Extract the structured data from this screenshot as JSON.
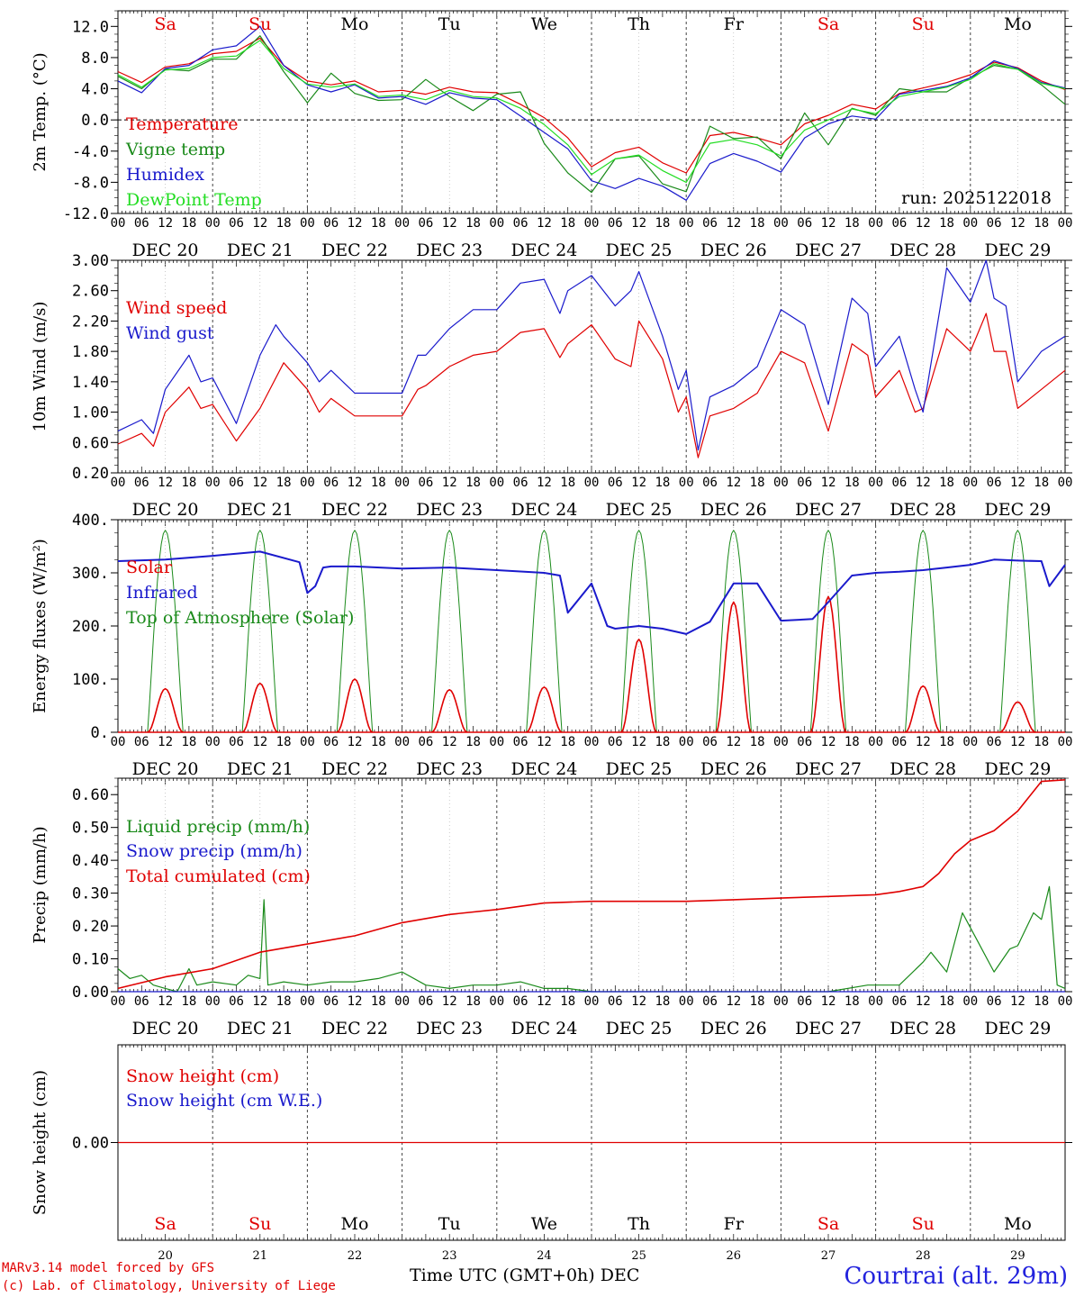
{
  "app": {
    "model_note": "MARv3.14 model forced by GFS",
    "lab_note": "(c) Lab. of Climatology, University of Liege",
    "x_title": "Time UTC (GMT+0h) DEC",
    "location": "Courtrai (alt. 29m)",
    "run_label": "run: 2025122018"
  },
  "days": {
    "weekday": [
      "Sa",
      "Su",
      "Mo",
      "Tu",
      "We",
      "Th",
      "Fr",
      "Sa",
      "Su",
      "Mo"
    ],
    "weekend": [
      true,
      true,
      false,
      false,
      false,
      false,
      false,
      true,
      true,
      false
    ],
    "dates": [
      "DEC 20",
      "DEC 21",
      "DEC 22",
      "DEC 23",
      "DEC 24",
      "DEC 25",
      "DEC 26",
      "DEC 27",
      "DEC 28",
      "DEC 29"
    ],
    "daynums": [
      "20",
      "21",
      "22",
      "23",
      "24",
      "25",
      "26",
      "27",
      "28",
      "29"
    ],
    "hours": [
      "00",
      "06",
      "12",
      "18"
    ],
    "end_hour": "00"
  },
  "chart_data": [
    {
      "id": "temp",
      "type": "line",
      "ylabel": "2m Temp. (°C)",
      "ylim": [
        -12,
        14
      ],
      "yticks": [
        "12.0",
        "8.0",
        "4.0",
        "0.0",
        "-4.0",
        "-8.0",
        "-12.0"
      ],
      "ytick_values": [
        12,
        8,
        4,
        0,
        -4,
        -8,
        -12
      ],
      "zero_line": true,
      "x_unit": "hours since DEC 20 00 UTC",
      "series": [
        {
          "name": "Temperature",
          "color": "#e00000",
          "x": [
            0,
            6,
            12,
            18,
            24,
            30,
            36,
            42,
            48,
            54,
            60,
            66,
            72,
            78,
            84,
            90,
            96,
            102,
            108,
            114,
            120,
            126,
            132,
            138,
            144,
            150,
            156,
            162,
            168,
            174,
            180,
            186,
            192,
            198,
            204,
            210,
            216,
            222,
            228,
            234,
            240
          ],
          "y": [
            6.2,
            4.8,
            6.8,
            7.2,
            8.5,
            8.8,
            10.5,
            7.0,
            5.0,
            4.5,
            5.0,
            3.6,
            3.8,
            3.3,
            4.2,
            3.6,
            3.5,
            2.0,
            0.3,
            -2.3,
            -6.0,
            -4.2,
            -3.5,
            -5.5,
            -6.8,
            -2.0,
            -1.6,
            -2.3,
            -3.2,
            -0.5,
            0.6,
            2.0,
            1.4,
            3.4,
            4.1,
            4.8,
            5.8,
            7.4,
            6.7,
            5.0,
            3.9
          ]
        },
        {
          "name": "Vigne temp",
          "color": "#1a8a1a",
          "x": [
            0,
            6,
            12,
            18,
            24,
            30,
            36,
            42,
            48,
            54,
            60,
            66,
            72,
            78,
            84,
            90,
            96,
            102,
            108,
            114,
            120,
            126,
            132,
            138,
            144,
            150,
            156,
            162,
            168,
            174,
            180,
            186,
            192,
            198,
            204,
            210,
            216,
            222,
            228,
            234,
            240
          ],
          "y": [
            5.6,
            4.0,
            6.5,
            6.3,
            7.8,
            7.8,
            10.8,
            6.2,
            2.2,
            6.0,
            3.4,
            2.5,
            2.6,
            5.2,
            3.0,
            1.2,
            3.3,
            3.6,
            -3.0,
            -6.8,
            -9.3,
            -5.0,
            -4.6,
            -8.2,
            -9.2,
            -0.8,
            -2.4,
            -2.2,
            -5.0,
            0.9,
            -3.2,
            1.5,
            0.6,
            4.0,
            3.6,
            3.6,
            5.4,
            7.0,
            6.5,
            4.5,
            2.0
          ]
        },
        {
          "name": "Humidex",
          "color": "#1a1acc",
          "x": [
            0,
            6,
            12,
            18,
            24,
            30,
            36,
            42,
            48,
            54,
            60,
            66,
            72,
            78,
            84,
            90,
            96,
            102,
            108,
            114,
            120,
            126,
            132,
            138,
            144,
            150,
            156,
            162,
            168,
            174,
            180,
            186,
            192,
            198,
            204,
            210,
            216,
            222,
            228,
            234,
            240
          ],
          "y": [
            5.0,
            3.5,
            6.6,
            7.0,
            9.0,
            9.5,
            12.0,
            7.0,
            4.5,
            3.6,
            4.5,
            2.8,
            3.0,
            2.0,
            3.5,
            2.8,
            2.6,
            0.5,
            -1.6,
            -3.7,
            -7.8,
            -8.8,
            -7.5,
            -8.5,
            -10.3,
            -5.6,
            -4.3,
            -5.3,
            -6.7,
            -2.3,
            -0.5,
            0.5,
            0.1,
            3.3,
            3.8,
            4.3,
            5.4,
            7.6,
            6.6,
            4.8,
            4.1
          ]
        },
        {
          "name": "DewPoint Temp",
          "color": "#22dd22",
          "x": [
            0,
            6,
            12,
            18,
            24,
            30,
            36,
            42,
            48,
            54,
            60,
            66,
            72,
            78,
            84,
            90,
            96,
            102,
            108,
            114,
            120,
            126,
            132,
            138,
            144,
            150,
            156,
            162,
            168,
            174,
            180,
            186,
            192,
            198,
            204,
            210,
            216,
            222,
            228,
            234,
            240
          ],
          "y": [
            5.8,
            4.2,
            6.4,
            6.6,
            8.0,
            8.2,
            10.2,
            6.6,
            4.6,
            4.2,
            4.6,
            3.0,
            3.2,
            2.6,
            3.8,
            3.0,
            2.8,
            1.5,
            -0.6,
            -3.2,
            -7.0,
            -5.0,
            -4.5,
            -6.5,
            -8.0,
            -3.0,
            -2.5,
            -3.2,
            -4.6,
            -1.3,
            0.0,
            1.4,
            0.8,
            3.0,
            3.6,
            4.2,
            5.2,
            7.2,
            6.5,
            4.7,
            4.0
          ]
        }
      ]
    },
    {
      "id": "wind",
      "type": "line",
      "ylabel": "10m Wind (m/s)",
      "ylim": [
        0.2,
        3.0
      ],
      "yticks": [
        "3.00",
        "2.60",
        "2.20",
        "1.80",
        "1.40",
        "1.00",
        "0.60",
        "0.20"
      ],
      "ytick_values": [
        3.0,
        2.6,
        2.2,
        1.8,
        1.4,
        1.0,
        0.6,
        0.2
      ],
      "x_unit": "hours since DEC 20 00 UTC",
      "series": [
        {
          "name": "Wind speed",
          "color": "#e00000",
          "x": [
            0,
            6,
            9,
            12,
            18,
            21,
            24,
            30,
            36,
            42,
            48,
            51,
            54,
            60,
            66,
            72,
            76,
            78,
            84,
            90,
            96,
            102,
            108,
            112,
            114,
            120,
            126,
            130,
            132,
            138,
            142,
            144,
            147,
            150,
            156,
            162,
            168,
            174,
            180,
            186,
            190,
            192,
            198,
            202,
            204,
            210,
            216,
            220,
            222,
            225,
            228,
            234,
            240
          ],
          "y": [
            0.58,
            0.72,
            0.55,
            1.0,
            1.33,
            1.05,
            1.1,
            0.62,
            1.05,
            1.65,
            1.3,
            1.0,
            1.18,
            0.95,
            0.95,
            0.95,
            1.3,
            1.35,
            1.6,
            1.75,
            1.8,
            2.05,
            2.1,
            1.72,
            1.9,
            2.15,
            1.7,
            1.6,
            2.2,
            1.7,
            1.0,
            1.2,
            0.4,
            0.95,
            1.05,
            1.25,
            1.8,
            1.65,
            0.75,
            1.9,
            1.75,
            1.2,
            1.55,
            1.0,
            1.05,
            2.1,
            1.8,
            2.3,
            1.8,
            1.8,
            1.05,
            1.3,
            1.55
          ]
        },
        {
          "name": "Wind gust",
          "color": "#1a1acc",
          "x": [
            0,
            6,
            9,
            12,
            18,
            21,
            24,
            30,
            36,
            40,
            42,
            48,
            51,
            54,
            60,
            66,
            72,
            76,
            78,
            84,
            90,
            96,
            102,
            108,
            112,
            114,
            120,
            126,
            130,
            132,
            138,
            142,
            144,
            147,
            150,
            156,
            162,
            168,
            174,
            180,
            186,
            190,
            192,
            198,
            202,
            204,
            210,
            216,
            220,
            222,
            225,
            228,
            234,
            240
          ],
          "y": [
            0.75,
            0.9,
            0.72,
            1.3,
            1.75,
            1.4,
            1.45,
            0.85,
            1.75,
            2.15,
            2.0,
            1.65,
            1.4,
            1.55,
            1.25,
            1.25,
            1.25,
            1.75,
            1.75,
            2.1,
            2.35,
            2.35,
            2.7,
            2.75,
            2.3,
            2.6,
            2.8,
            2.4,
            2.6,
            2.85,
            2.0,
            1.3,
            1.55,
            0.5,
            1.2,
            1.35,
            1.6,
            2.35,
            2.15,
            1.1,
            2.5,
            2.3,
            1.6,
            2.0,
            1.3,
            1.0,
            2.9,
            2.45,
            3.0,
            2.5,
            2.4,
            1.4,
            1.8,
            2.0
          ]
        }
      ]
    },
    {
      "id": "energy",
      "type": "line",
      "ylabel": "Energy fluxes (W/m²)",
      "ylim": [
        0,
        400
      ],
      "yticks": [
        "400.",
        "300.",
        "200.",
        "100.",
        "0."
      ],
      "ytick_values": [
        400,
        300,
        200,
        100,
        0
      ],
      "x_unit": "hours since DEC 20 00 UTC",
      "solar_daily_peak": [
        82,
        92,
        100,
        80,
        85,
        175,
        245,
        255,
        87,
        57
      ],
      "toa_daily_peak": 380,
      "daylight_hours": [
        7.5,
        16.5
      ],
      "series": [
        {
          "name": "Solar",
          "color": "#e00000"
        },
        {
          "name": "Infrared",
          "color": "#1a1acc",
          "x": [
            0,
            12,
            24,
            36,
            46,
            48,
            50,
            52,
            54,
            60,
            72,
            84,
            96,
            108,
            112,
            114,
            120,
            124,
            126,
            132,
            138,
            144,
            150,
            156,
            162,
            168,
            176,
            180,
            186,
            192,
            198,
            204,
            210,
            216,
            222,
            228,
            234,
            236,
            240
          ],
          "y": [
            322,
            325,
            332,
            340,
            320,
            262,
            275,
            310,
            312,
            312,
            308,
            310,
            305,
            300,
            295,
            225,
            280,
            200,
            195,
            200,
            195,
            185,
            208,
            280,
            280,
            210,
            213,
            245,
            295,
            300,
            302,
            305,
            310,
            315,
            325,
            323,
            322,
            275,
            315
          ]
        },
        {
          "name": "Top of Atmosphere (Solar)",
          "color": "#1a8a1a"
        }
      ]
    },
    {
      "id": "precip",
      "type": "line",
      "ylabel": "Precip (mm/h)",
      "ylim": [
        0,
        0.65
      ],
      "yticks": [
        "0.60",
        "0.50",
        "0.40",
        "0.30",
        "0.20",
        "0.10",
        "0.00"
      ],
      "ytick_values": [
        0.6,
        0.5,
        0.4,
        0.3,
        0.2,
        0.1,
        0.0
      ],
      "x_unit": "hours since DEC 20 00 UTC",
      "series": [
        {
          "name": "Liquid precip (mm/h)",
          "color": "#1a8a1a",
          "x": [
            0,
            3,
            6,
            9,
            12,
            15,
            18,
            20,
            24,
            30,
            33,
            36,
            37,
            38,
            42,
            48,
            54,
            60,
            66,
            72,
            78,
            84,
            90,
            96,
            102,
            108,
            114,
            120,
            132,
            144,
            156,
            168,
            180,
            190,
            198,
            204,
            206,
            210,
            214,
            218,
            222,
            226,
            228,
            232,
            234,
            236,
            238,
            240
          ],
          "y": [
            0.07,
            0.04,
            0.05,
            0.02,
            0.01,
            0.0,
            0.07,
            0.02,
            0.03,
            0.02,
            0.05,
            0.04,
            0.28,
            0.02,
            0.03,
            0.02,
            0.03,
            0.03,
            0.04,
            0.06,
            0.02,
            0.01,
            0.02,
            0.02,
            0.03,
            0.01,
            0.01,
            0.0,
            0.0,
            0.0,
            0.0,
            0.0,
            0.0,
            0.02,
            0.02,
            0.09,
            0.12,
            0.06,
            0.24,
            0.15,
            0.06,
            0.13,
            0.14,
            0.24,
            0.22,
            0.32,
            0.02,
            0.01
          ]
        },
        {
          "name": "Snow precip (mm/h)",
          "color": "#1a1acc",
          "x": [
            0,
            240
          ],
          "y": [
            0.0,
            0.0
          ]
        },
        {
          "name": "Total cumulated (cm)",
          "color": "#e00000",
          "x": [
            0,
            12,
            24,
            36,
            48,
            60,
            72,
            84,
            96,
            108,
            120,
            132,
            144,
            156,
            168,
            180,
            192,
            198,
            204,
            208,
            212,
            216,
            222,
            228,
            234,
            240
          ],
          "y": [
            0.01,
            0.045,
            0.07,
            0.12,
            0.145,
            0.17,
            0.21,
            0.235,
            0.25,
            0.27,
            0.275,
            0.275,
            0.275,
            0.28,
            0.285,
            0.29,
            0.295,
            0.305,
            0.32,
            0.36,
            0.42,
            0.46,
            0.49,
            0.55,
            0.64,
            0.645
          ]
        }
      ]
    },
    {
      "id": "snow",
      "type": "line",
      "ylabel": "Snow height (cm)",
      "ylim": [
        -1,
        1
      ],
      "yticks": [
        "0.00"
      ],
      "ytick_values": [
        0.0
      ],
      "x_unit": "hours since DEC 20 00 UTC",
      "series": [
        {
          "name": "Snow height (cm)",
          "color": "#e00000",
          "x": [
            0,
            240
          ],
          "y": [
            0.0,
            0.0
          ]
        },
        {
          "name": "Snow height (cm W.E.)",
          "color": "#1a1acc"
        }
      ]
    }
  ]
}
